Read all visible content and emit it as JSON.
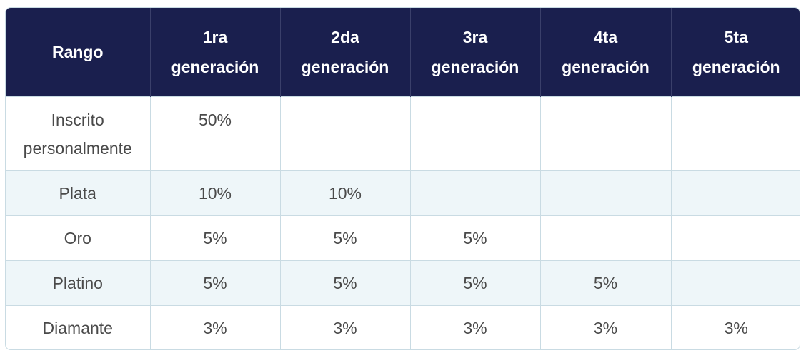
{
  "table": {
    "headers": [
      [
        "Rango"
      ],
      [
        "1ra",
        "generación"
      ],
      [
        "2da",
        "generación"
      ],
      [
        "3ra",
        "generación"
      ],
      [
        "4ta",
        "generación"
      ],
      [
        "5ta",
        "generación"
      ]
    ],
    "rows": [
      [
        "Inscrito personalmente",
        "50%",
        "",
        "",
        "",
        ""
      ],
      [
        "Plata",
        "10%",
        "10%",
        "",
        "",
        ""
      ],
      [
        "Oro",
        "5%",
        "5%",
        "5%",
        "",
        ""
      ],
      [
        "Platino",
        "5%",
        "5%",
        "5%",
        "5%",
        ""
      ],
      [
        "Diamante",
        "3%",
        "3%",
        "3%",
        "3%",
        "3%"
      ]
    ]
  },
  "colors": {
    "header_bg": "#1a1f4e",
    "header_text": "#ffffff",
    "row_shade": "#eef6f9",
    "border": "#c9dbe3",
    "body_text": "#4a4a4a"
  }
}
